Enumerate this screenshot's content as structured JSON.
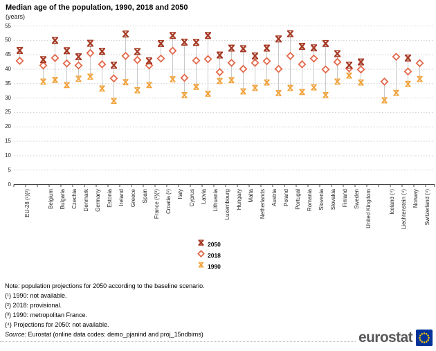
{
  "chart_data": {
    "type": "scatter",
    "title": "Median age of the population, 1990, 2018 and 2050",
    "subtitle": "(years)",
    "ylim": [
      0,
      55
    ],
    "ytick_step": 5,
    "grid": "horizontal-dotted",
    "legend_position": "bottom-center",
    "categories": [
      {
        "label": "EU-28 (¹)(²)",
        "slot": 0
      },
      {
        "label": "Belgium",
        "slot": 2
      },
      {
        "label": "Bulgaria",
        "slot": 3
      },
      {
        "label": "Czechia",
        "slot": 4
      },
      {
        "label": "Denmark",
        "slot": 5
      },
      {
        "label": "Germany",
        "slot": 6
      },
      {
        "label": "Estonia",
        "slot": 7
      },
      {
        "label": "Ireland",
        "slot": 8
      },
      {
        "label": "Greece",
        "slot": 9
      },
      {
        "label": "Spain",
        "slot": 10
      },
      {
        "label": "France (²)(³)",
        "slot": 11
      },
      {
        "label": "Croatia (¹)",
        "slot": 12
      },
      {
        "label": "Italy",
        "slot": 13
      },
      {
        "label": "Cyprus",
        "slot": 14
      },
      {
        "label": "Latvia",
        "slot": 15
      },
      {
        "label": "Lithuania",
        "slot": 16
      },
      {
        "label": "Luxembourg",
        "slot": 17
      },
      {
        "label": "Hungary",
        "slot": 18
      },
      {
        "label": "Malta",
        "slot": 19
      },
      {
        "label": "Netherlands",
        "slot": 20
      },
      {
        "label": "Austria",
        "slot": 21
      },
      {
        "label": "Poland",
        "slot": 22
      },
      {
        "label": "Portugal",
        "slot": 23
      },
      {
        "label": "Romania",
        "slot": 24
      },
      {
        "label": "Slovenia",
        "slot": 25
      },
      {
        "label": "Slovakia",
        "slot": 26
      },
      {
        "label": "Finland",
        "slot": 27
      },
      {
        "label": "Sweden",
        "slot": 28
      },
      {
        "label": "United Kingdom",
        "slot": 29
      },
      {
        "label": "Iceland (⁴)",
        "slot": 31
      },
      {
        "label": "Liechtenstein (⁴)",
        "slot": 32
      },
      {
        "label": "Norway",
        "slot": 33
      },
      {
        "label": "Switzerland (⁴)",
        "slot": 34
      }
    ],
    "series": [
      {
        "name": "2050",
        "marker": "bold-x",
        "color": "#a63a25",
        "values": [
          46.5,
          43.3,
          50.0,
          46.4,
          44.3,
          49.0,
          46.2,
          41.4,
          52.2,
          46.1,
          42.9,
          48.9,
          51.7,
          49.4,
          49.3,
          51.7,
          44.9,
          47.3,
          47.1,
          44.6,
          47.3,
          50.5,
          52.3,
          47.9,
          47.4,
          48.9,
          45.4,
          41.4,
          42.5,
          null,
          null,
          43.9,
          null
        ]
      },
      {
        "name": "2018",
        "marker": "diamond",
        "color": "#e26849",
        "values": [
          42.9,
          41.3,
          43.9,
          42.0,
          41.3,
          45.6,
          41.7,
          36.8,
          44.6,
          43.2,
          41.3,
          43.7,
          46.4,
          37.0,
          43.0,
          43.5,
          39.0,
          42.2,
          40.1,
          42.2,
          42.8,
          40.1,
          44.6,
          41.7,
          43.7,
          39.9,
          42.5,
          40.3,
          39.9,
          35.7,
          44.3,
          39.2,
          42.1
        ]
      },
      {
        "name": "1990",
        "marker": "x",
        "color": "#f1a33c",
        "values": [
          null,
          35.7,
          36.3,
          34.5,
          36.7,
          37.4,
          33.3,
          29.0,
          35.5,
          32.7,
          34.5,
          null,
          36.5,
          31.0,
          33.9,
          31.5,
          35.9,
          36.2,
          32.3,
          33.5,
          35.4,
          31.7,
          33.5,
          32.1,
          33.7,
          31.0,
          35.7,
          37.8,
          35.4,
          29.2,
          31.8,
          34.9,
          36.6
        ]
      }
    ]
  },
  "notes": [
    "Note: population projections for 2050 according to the baseline scenario.",
    "(¹) 1990: not available.",
    "(²) 2018: provisional.",
    "(³) 1990: metropolitan France.",
    "(⁴) Projections for 2050: not available."
  ],
  "source": {
    "prefix": "Source:",
    "text": " Eurostat (online data codes: demo_pjanind and proj_15ndbims)"
  },
  "logo": {
    "text": "eurostat",
    "square_color": "#003399",
    "star_color": "#ffcc00",
    "text_color": "#58585b"
  }
}
